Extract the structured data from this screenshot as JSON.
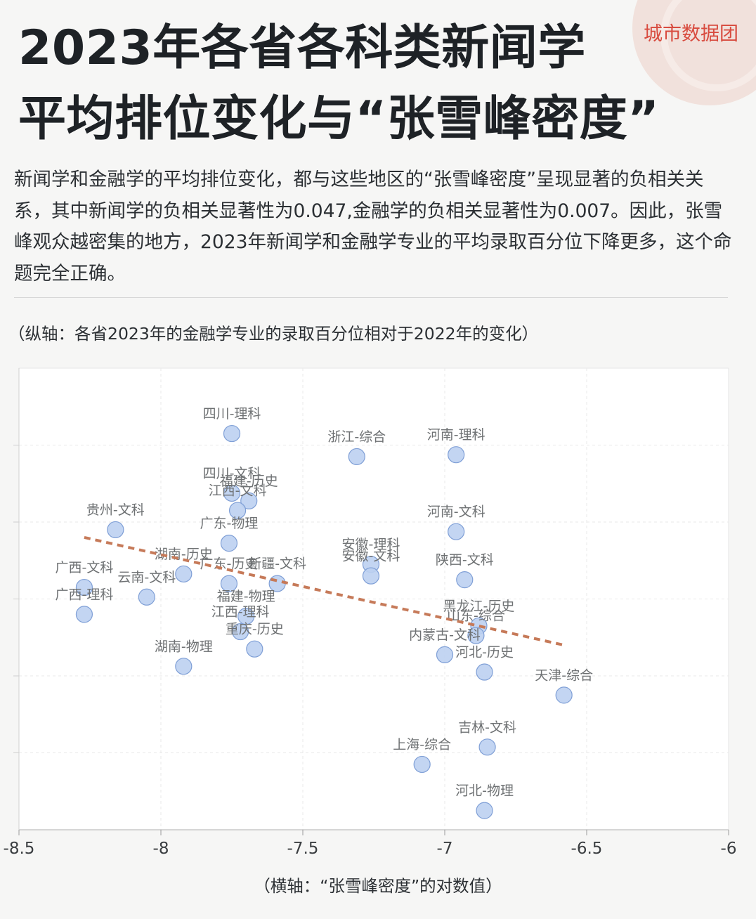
{
  "brand": "城市数据团",
  "title_line1": "2023年各省各科类新闻学",
  "title_line2": "平均排位变化与“张雪峰密度”",
  "description": "新闻学和金融学的平均排位变化，都与这些地区的“张雪峰密度”呈现显著的负相关关系，其中新闻学的负相关显著性为0.047,金融学的负相关显著性为0.007。因此，张雪峰观众越密集的地方，2023年新闻学和金融学专业的平均录取百分位下降更多，这个命题完全正确。",
  "y_note": "（纵轴：各省2023年的金融学专业的录取百分位相对于2022年的变化）",
  "x_note": "（横轴：“张雪峰密度”的对数值）",
  "colors": {
    "point_fill": "#bcd0f1",
    "point_stroke": "#7f9fd6",
    "trend": "#c67a59",
    "brand": "#d84b3f"
  },
  "chart_data": {
    "type": "scatter",
    "xlabel": "（横轴：“张雪峰密度”的对数值）",
    "ylabel": "（纵轴：各省2023年的金融学专业的录取百分位相对于2022年的变化）",
    "xlim": [
      -8.5,
      -6
    ],
    "xticks": [
      "-8.5",
      "-8",
      "-7.5",
      "-7",
      "-6.5",
      "-6"
    ],
    "ylim": [
      -6,
      6
    ],
    "y_gridlines": [
      4,
      2,
      0,
      -2,
      -4
    ],
    "grid": true,
    "points": [
      {
        "label": "四川-理科",
        "x": -7.75,
        "y": 4.3
      },
      {
        "label": "浙江-综合",
        "x": -7.31,
        "y": 3.7
      },
      {
        "label": "河南-理科",
        "x": -6.96,
        "y": 3.75
      },
      {
        "label": "四川-文科",
        "x": -7.75,
        "y": 2.75
      },
      {
        "label": "福建-历史",
        "x": -7.69,
        "y": 2.55
      },
      {
        "label": "江西-文科",
        "x": -7.73,
        "y": 2.3
      },
      {
        "label": "贵州-文科",
        "x": -8.16,
        "y": 1.8
      },
      {
        "label": "广东-物理",
        "x": -7.76,
        "y": 1.45
      },
      {
        "label": "河南-文科",
        "x": -6.96,
        "y": 1.75
      },
      {
        "label": "安徽-理科",
        "x": -7.26,
        "y": 0.9
      },
      {
        "label": "安徽-文科",
        "x": -7.26,
        "y": 0.6
      },
      {
        "label": "陕西-文科",
        "x": -6.93,
        "y": 0.5
      },
      {
        "label": "湖南-历史",
        "x": -7.92,
        "y": 0.65
      },
      {
        "label": "广东-历史",
        "x": -7.76,
        "y": 0.4
      },
      {
        "label": "新疆-文科",
        "x": -7.59,
        "y": 0.4
      },
      {
        "label": "广西-文科",
        "x": -8.27,
        "y": 0.3
      },
      {
        "label": "云南-文科",
        "x": -8.05,
        "y": 0.05
      },
      {
        "label": "福建-物理",
        "x": -7.7,
        "y": -0.45
      },
      {
        "label": "江西-理科",
        "x": -7.72,
        "y": -0.85
      },
      {
        "label": "广西-理科",
        "x": -8.27,
        "y": -0.4
      },
      {
        "label": "重庆-历史",
        "x": -7.67,
        "y": -1.3
      },
      {
        "label": "湖南-物理",
        "x": -7.92,
        "y": -1.75
      },
      {
        "label": "黑龙江-历史",
        "x": -6.88,
        "y": -0.7
      },
      {
        "label": "山东-综合",
        "x": -6.89,
        "y": -0.95
      },
      {
        "label": "内蒙古-文科",
        "x": -7.0,
        "y": -1.45
      },
      {
        "label": "河北-历史",
        "x": -6.86,
        "y": -1.9
      },
      {
        "label": "天津-综合",
        "x": -6.58,
        "y": -2.5
      },
      {
        "label": "吉林-文科",
        "x": -6.85,
        "y": -3.85
      },
      {
        "label": "上海-综合",
        "x": -7.08,
        "y": -4.3
      },
      {
        "label": "河北-物理",
        "x": -6.86,
        "y": -5.5
      }
    ],
    "trendline": {
      "x": [
        -8.27,
        -6.58
      ],
      "y": [
        1.6,
        -1.2
      ]
    }
  }
}
